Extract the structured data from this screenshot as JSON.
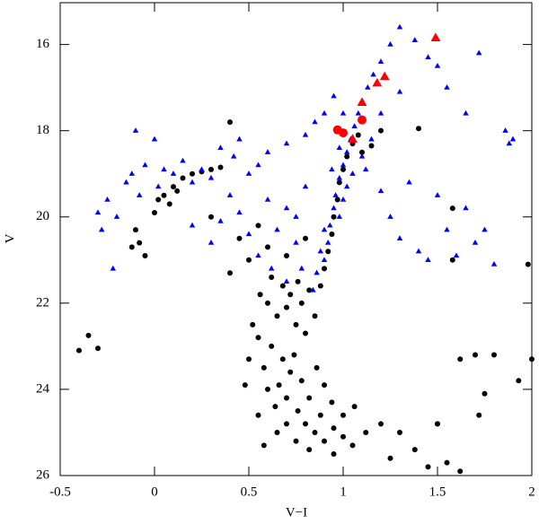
{
  "chart_data": {
    "type": "scatter",
    "x_label": "V−I",
    "y_label": "V",
    "xlim": [
      -0.5,
      2
    ],
    "xticks": [
      -0.5,
      0,
      0.5,
      1,
      1.5,
      2
    ],
    "ylim": [
      26,
      15.03
    ],
    "yticks": [
      16,
      18,
      20,
      22,
      24,
      26
    ],
    "series": [
      {
        "color": "#000000",
        "marker": "circle",
        "x": [
          0.6,
          0.65,
          0.7,
          0.75,
          0.55,
          0.62,
          0.68,
          0.72,
          0.58,
          0.66,
          0.7,
          0.76,
          0.8,
          0.85,
          0.9,
          0.95,
          1.0,
          0.88,
          0.82,
          0.78,
          0.74,
          0.8,
          0.85,
          0.78,
          0.72,
          0.68,
          0.76,
          0.82,
          0.88,
          0.9,
          0.92,
          0.94,
          0.95,
          0.97,
          0.98,
          1.0,
          1.02,
          1.05,
          1.08,
          0.6,
          0.64,
          0.7,
          0.75,
          0.82,
          0.95,
          1.05,
          1.12,
          1.2,
          1.3,
          1.38,
          1.25,
          1.5,
          0.5,
          0.52,
          0.56,
          0.62,
          0.86,
          0.9,
          0.94,
          1.0,
          1.06,
          0.55,
          0.48,
          0.65,
          0.58,
          -0.1,
          -0.08,
          -0.05,
          -0.12,
          0.0,
          0.02,
          0.05,
          0.1,
          0.15,
          0.2,
          0.25,
          0.3,
          0.08,
          0.12,
          0.35,
          0.4,
          0.3,
          0.45,
          0.55,
          0.6,
          0.5,
          0.4,
          0.7,
          0.8,
          1.1,
          1.2,
          1.15,
          1.4,
          1.58,
          1.98,
          1.58,
          1.7,
          1.8,
          1.62,
          1.75,
          1.72,
          1.93,
          2.0,
          1.5,
          1.55,
          1.62,
          -0.35,
          -0.4,
          -0.3,
          1.45
        ],
        "values": [
          22.0,
          22.3,
          22.1,
          22.5,
          22.8,
          23.0,
          23.3,
          23.6,
          23.5,
          23.9,
          24.2,
          24.5,
          24.8,
          25.0,
          25.2,
          24.9,
          25.1,
          24.6,
          24.2,
          23.8,
          23.2,
          22.7,
          22.3,
          22.0,
          21.8,
          21.6,
          21.5,
          21.7,
          21.6,
          21.2,
          20.8,
          20.4,
          20.0,
          19.6,
          19.2,
          18.9,
          18.6,
          18.3,
          18.1,
          24.0,
          24.4,
          24.8,
          25.2,
          25.4,
          25.5,
          25.3,
          25.0,
          24.8,
          25.0,
          25.4,
          25.6,
          24.8,
          23.3,
          22.5,
          21.8,
          21.4,
          23.5,
          23.9,
          24.3,
          24.6,
          24.4,
          24.6,
          23.9,
          25.0,
          25.3,
          20.3,
          20.6,
          20.9,
          20.7,
          19.9,
          19.6,
          19.5,
          19.3,
          19.1,
          19.0,
          18.95,
          18.9,
          19.7,
          19.4,
          18.85,
          17.8,
          20.0,
          20.5,
          20.2,
          20.7,
          21.0,
          21.3,
          20.9,
          20.5,
          18.5,
          18.0,
          18.35,
          17.95,
          19.8,
          21.1,
          21.0,
          23.2,
          23.2,
          23.3,
          24.1,
          24.6,
          23.8,
          23.3,
          24.8,
          25.7,
          25.9,
          22.75,
          23.1,
          23.05,
          25.8
        ]
      },
      {
        "color": "#0000ff",
        "marker": "triangle",
        "x": [
          0.9,
          0.92,
          0.93,
          0.95,
          0.96,
          0.98,
          1.0,
          1.02,
          1.04,
          1.06,
          1.08,
          1.1,
          1.13,
          1.16,
          1.2,
          1.25,
          1.3,
          1.38,
          1.45,
          1.5,
          1.55,
          1.65,
          1.72,
          0.98,
          1.0,
          1.02,
          0.9,
          0.88,
          0.86,
          0.84,
          1.05,
          1.1,
          1.12,
          1.15,
          1.0,
          0.95,
          0.98,
          0.94,
          -0.3,
          -0.28,
          -0.25,
          -0.2,
          -0.22,
          -0.15,
          -0.12,
          -0.1,
          -0.05,
          0.0,
          0.05,
          0.1,
          0.15,
          0.2,
          0.25,
          0.3,
          0.35,
          0.4,
          0.42,
          0.45,
          0.5,
          0.55,
          -0.08,
          0.02,
          0.2,
          0.3,
          0.35,
          0.45,
          0.5,
          0.55,
          0.6,
          0.65,
          0.7,
          0.75,
          0.8,
          0.6,
          0.7,
          0.8,
          0.85,
          0.9,
          1.2,
          1.25,
          1.3,
          1.35,
          1.4,
          1.45,
          1.5,
          1.55,
          1.6,
          1.7,
          1.8,
          1.86,
          1.88,
          1.9,
          1.75,
          1.65,
          1.2,
          1.3,
          0.62,
          0.7,
          0.78,
          0.75
        ],
        "values": [
          21.0,
          20.6,
          20.2,
          19.8,
          19.5,
          19.1,
          18.8,
          18.5,
          18.2,
          17.9,
          17.6,
          17.3,
          17.0,
          16.7,
          16.4,
          16.0,
          15.6,
          15.9,
          16.3,
          16.5,
          17.0,
          17.6,
          16.2,
          20.0,
          19.6,
          19.3,
          20.3,
          20.8,
          21.3,
          21.7,
          19.0,
          18.6,
          18.9,
          18.2,
          17.6,
          17.2,
          18.4,
          18.9,
          19.9,
          20.3,
          19.6,
          20.0,
          21.2,
          19.2,
          19.0,
          18.0,
          18.8,
          18.2,
          18.9,
          19.0,
          18.7,
          19.2,
          18.9,
          19.1,
          18.4,
          19.5,
          18.6,
          18.2,
          19.0,
          18.8,
          19.5,
          19.3,
          20.2,
          20.6,
          20.1,
          19.9,
          20.4,
          20.9,
          19.6,
          20.3,
          19.8,
          20.6,
          19.3,
          18.5,
          18.3,
          18.1,
          17.8,
          17.6,
          19.4,
          20.0,
          20.5,
          19.2,
          20.8,
          21.0,
          19.5,
          20.3,
          20.9,
          20.6,
          21.1,
          18.0,
          18.3,
          18.2,
          20.3,
          19.8,
          17.6,
          17.1,
          21.2,
          21.5,
          21.2,
          20.0
        ]
      },
      {
        "color": "#ff0000",
        "marker": "triangle-large",
        "x": [
          1.49,
          1.22,
          1.18,
          1.1,
          1.05,
          0.98
        ],
        "values": [
          15.85,
          16.75,
          16.9,
          17.35,
          18.2,
          18.0
        ]
      },
      {
        "color": "#ff0000",
        "marker": "circle-large",
        "x": [
          0.97,
          1.0,
          1.1
        ],
        "values": [
          17.98,
          18.05,
          17.75
        ]
      }
    ]
  }
}
